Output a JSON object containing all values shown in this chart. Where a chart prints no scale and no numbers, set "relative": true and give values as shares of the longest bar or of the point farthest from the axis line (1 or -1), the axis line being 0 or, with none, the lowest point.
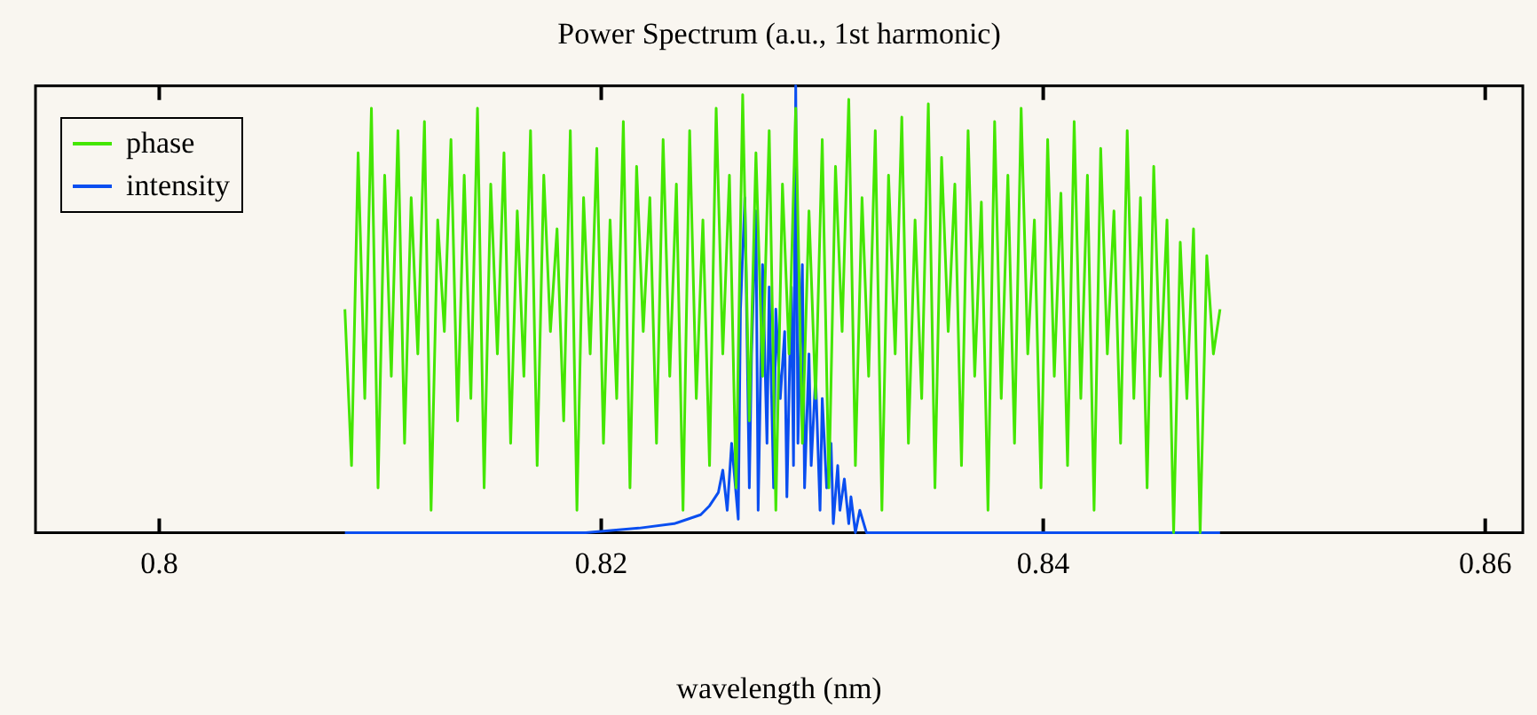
{
  "chart_data": {
    "type": "line",
    "title": "Power Spectrum (a.u., 1st harmonic)",
    "xlabel": "wavelength (nm)",
    "relative": true,
    "legend": "top left",
    "grid": false,
    "marker": "none",
    "line_style": "solid",
    "xlim": [
      0.7944,
      0.8617
    ],
    "xticks": [
      0.8,
      0.82,
      0.84,
      0.86
    ],
    "series": [
      {
        "name": "phase",
        "color": "#44e600",
        "x": [
          0.8084,
          0.8087,
          0.809,
          0.8093,
          0.8096,
          0.8099,
          0.8102,
          0.8105,
          0.8108,
          0.8111,
          0.8114,
          0.8117,
          0.812,
          0.8123,
          0.8126,
          0.8129,
          0.8132,
          0.8135,
          0.8138,
          0.8141,
          0.8144,
          0.8147,
          0.815,
          0.8153,
          0.8156,
          0.8159,
          0.8162,
          0.8165,
          0.8168,
          0.8171,
          0.8174,
          0.8177,
          0.818,
          0.8183,
          0.8186,
          0.8189,
          0.8192,
          0.8195,
          0.8198,
          0.8201,
          0.8204,
          0.8207,
          0.821,
          0.8213,
          0.8216,
          0.8219,
          0.8222,
          0.8225,
          0.8228,
          0.8231,
          0.8234,
          0.8237,
          0.824,
          0.8243,
          0.8246,
          0.8249,
          0.8252,
          0.8255,
          0.8258,
          0.8261,
          0.8264,
          0.8267,
          0.827,
          0.8273,
          0.8276,
          0.8279,
          0.8282,
          0.8285,
          0.8288,
          0.8291,
          0.8294,
          0.8297,
          0.83,
          0.8303,
          0.8306,
          0.8309,
          0.8312,
          0.8315,
          0.8318,
          0.8321,
          0.8324,
          0.8327,
          0.833,
          0.8333,
          0.8336,
          0.8339,
          0.8342,
          0.8345,
          0.8348,
          0.8351,
          0.8354,
          0.8357,
          0.836,
          0.8363,
          0.8366,
          0.8369,
          0.8372,
          0.8375,
          0.8378,
          0.8381,
          0.8384,
          0.8387,
          0.839,
          0.8393,
          0.8396,
          0.8399,
          0.8402,
          0.8405,
          0.8408,
          0.8411,
          0.8414,
          0.8417,
          0.842,
          0.8423,
          0.8426,
          0.8429,
          0.8432,
          0.8435,
          0.8438,
          0.8441,
          0.8444,
          0.8447,
          0.845,
          0.8453,
          0.8456,
          0.8459,
          0.8462,
          0.8465,
          0.8468,
          0.8471,
          0.8474,
          0.8477,
          0.848
        ],
        "values": [
          0.5,
          0.15,
          0.85,
          0.3,
          0.95,
          0.1,
          0.8,
          0.35,
          0.9,
          0.2,
          0.75,
          0.4,
          0.92,
          0.05,
          0.7,
          0.45,
          0.88,
          0.25,
          0.8,
          0.3,
          0.95,
          0.1,
          0.78,
          0.4,
          0.85,
          0.2,
          0.72,
          0.35,
          0.9,
          0.15,
          0.8,
          0.45,
          0.68,
          0.25,
          0.9,
          0.05,
          0.75,
          0.4,
          0.86,
          0.2,
          0.7,
          0.3,
          0.92,
          0.1,
          0.82,
          0.45,
          0.75,
          0.2,
          0.88,
          0.35,
          0.78,
          0.05,
          0.9,
          0.3,
          0.7,
          0.15,
          0.95,
          0.4,
          0.8,
          0.1,
          0.98,
          0.25,
          0.85,
          0.35,
          0.9,
          0.05,
          0.78,
          0.4,
          0.95,
          0.2,
          0.72,
          0.3,
          0.88,
          0.1,
          0.82,
          0.45,
          0.97,
          0.15,
          0.75,
          0.35,
          0.9,
          0.05,
          0.8,
          0.4,
          0.93,
          0.2,
          0.7,
          0.3,
          0.96,
          0.1,
          0.84,
          0.45,
          0.78,
          0.15,
          0.9,
          0.35,
          0.74,
          0.05,
          0.92,
          0.3,
          0.8,
          0.2,
          0.95,
          0.4,
          0.7,
          0.1,
          0.88,
          0.35,
          0.76,
          0.15,
          0.92,
          0.3,
          0.8,
          0.05,
          0.86,
          0.4,
          0.72,
          0.2,
          0.9,
          0.3,
          0.75,
          0.1,
          0.82,
          0.35,
          0.7,
          0.0,
          0.65,
          0.3,
          0.68,
          0.0,
          0.62,
          0.4,
          0.5
        ]
      },
      {
        "name": "intensity",
        "color": "#0a4ef0",
        "x": [
          0.8084,
          0.8193,
          0.8217,
          0.8233,
          0.8245,
          0.8249,
          0.8253,
          0.8255,
          0.8257,
          0.8259,
          0.8262,
          0.8263,
          0.8265,
          0.8267,
          0.8268,
          0.827,
          0.8271,
          0.8273,
          0.8275,
          0.8276,
          0.8278,
          0.8279,
          0.8281,
          0.8283,
          0.8284,
          0.8286,
          0.8287,
          0.8288,
          0.8289,
          0.8291,
          0.8292,
          0.8294,
          0.8295,
          0.8297,
          0.8299,
          0.83,
          0.8302,
          0.8304,
          0.8305,
          0.8307,
          0.8308,
          0.831,
          0.8312,
          0.8313,
          0.8315,
          0.8317,
          0.832,
          0.848
        ],
        "values": [
          0,
          0,
          0.01,
          0.02,
          0.04,
          0.06,
          0.09,
          0.14,
          0.05,
          0.2,
          0.03,
          0.5,
          0.75,
          0.1,
          0.4,
          0.72,
          0.05,
          0.6,
          0.2,
          0.55,
          0.1,
          0.5,
          0.3,
          0.45,
          0.08,
          0.55,
          0.15,
          1.0,
          0.2,
          0.6,
          0.1,
          0.4,
          0.15,
          0.35,
          0.05,
          0.3,
          0.1,
          0.2,
          0.02,
          0.15,
          0.05,
          0.12,
          0.02,
          0.08,
          0,
          0.05,
          0,
          0
        ]
      }
    ]
  }
}
